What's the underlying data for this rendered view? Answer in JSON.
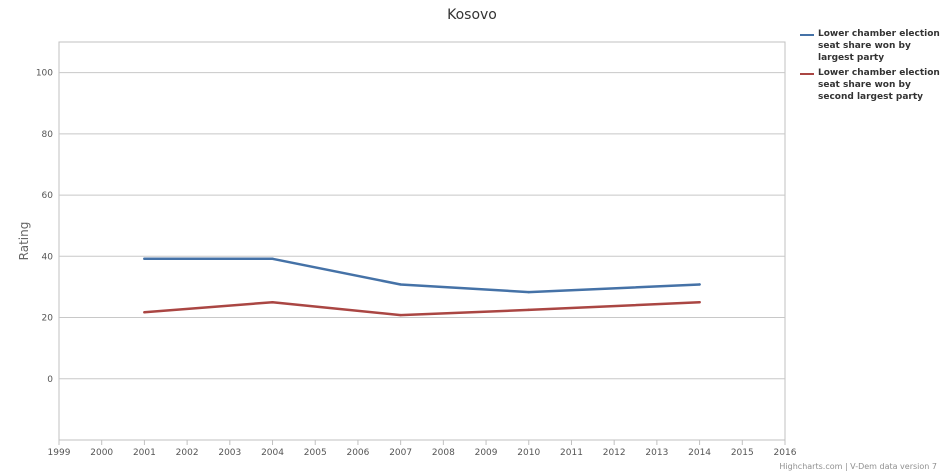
{
  "chart_data": {
    "type": "line",
    "title": "Kosovo",
    "xlabel": "",
    "ylabel": "Rating",
    "xlim": [
      1999,
      2016
    ],
    "ylim": [
      -20,
      110
    ],
    "x_ticks": [
      1999,
      2000,
      2001,
      2002,
      2003,
      2004,
      2005,
      2006,
      2007,
      2008,
      2009,
      2010,
      2011,
      2012,
      2013,
      2014,
      2015,
      2016
    ],
    "y_ticks": [
      0,
      20,
      40,
      60,
      80,
      100
    ],
    "grid": true,
    "legend": "right",
    "series": [
      {
        "name": "Lower chamber election seat share won by largest party",
        "color": "#4572a7",
        "x": [
          2001,
          2004,
          2007,
          2010,
          2014
        ],
        "y": [
          39.2,
          39.2,
          30.8,
          28.3,
          30.8
        ]
      },
      {
        "name": "Lower chamber election seat share won by second largest party",
        "color": "#aa4643",
        "x": [
          2001,
          2004,
          2007,
          2010,
          2014
        ],
        "y": [
          21.7,
          25.0,
          20.8,
          22.5,
          25.0
        ]
      }
    ]
  },
  "credits": "Highcharts.com | V-Dem data version 7"
}
